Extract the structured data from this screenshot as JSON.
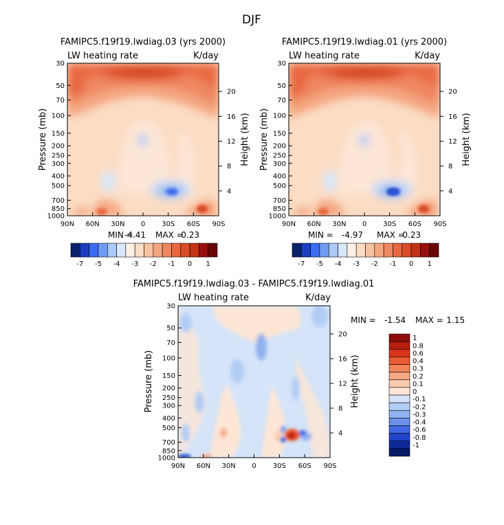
{
  "chart_data": {
    "type": "heatmap",
    "season": "DJF",
    "x_tick_labels": [
      "90N",
      "60N",
      "30N",
      "0",
      "30S",
      "60S",
      "90S"
    ],
    "pressure_ticks": [
      1000,
      850,
      700,
      500,
      400,
      300,
      250,
      200,
      150,
      100,
      70,
      50,
      30
    ],
    "height_ticks": [
      4,
      8,
      12,
      16,
      20
    ],
    "ylabel": "Pressure (mb)",
    "ylabel_right": "Height (km)",
    "variable": "LW heating rate",
    "units": "K/day",
    "panels": [
      {
        "title": "FAMIPC5.f19f19.lwdiag.03 (yrs 2000)",
        "stats": {
          "min_label": "MIN =",
          "min": "-4.41",
          "max_label": "MAX =",
          "max": "0.23"
        }
      },
      {
        "title": "FAMIPC5.f19f19.lwdiag.01 (yrs 2000)",
        "stats": {
          "min_label": "MIN =",
          "min": "-4.97",
          "max_label": "MAX =",
          "max": "0.23"
        }
      },
      {
        "title": "FAMIPC5.f19f19.lwdiag.03 - FAMIPC5.f19f19.lwdiag.01",
        "stats": {
          "min_label": "MIN =",
          "min": "-1.54",
          "max_label": "MAX =",
          "max": "1.15"
        }
      }
    ],
    "colorbar_top": {
      "labels": [
        "-7",
        "-5",
        "-4",
        "-3",
        "-2",
        "-1",
        "0",
        "1"
      ],
      "colors": [
        "#08216b",
        "#1a3fc2",
        "#3a6cf0",
        "#6f9cf3",
        "#a9c8f6",
        "#d8e8fb",
        "#fdf0e4",
        "#fbdcc4",
        "#f8c2a2",
        "#f4a580",
        "#ef8760",
        "#e8673f",
        "#d94c26",
        "#c23414",
        "#990f0f",
        "#6b0606"
      ]
    },
    "colorbar_diff": {
      "labels": [
        "1",
        "0.8",
        "0.6",
        "0.4",
        "0.3",
        "0.2",
        "0.1",
        "0",
        "-0.1",
        "-0.2",
        "-0.3",
        "-0.4",
        "-0.6",
        "-0.8",
        "-1"
      ],
      "colors": [
        "#8e0c0c",
        "#b81d10",
        "#d9321a",
        "#ec5a34",
        "#f58458",
        "#f7a883",
        "#f9c9ae",
        "#fde6d6",
        "#d5e4f8",
        "#b2cdf4",
        "#8fb1ef",
        "#6a90ea",
        "#3f68e3",
        "#1f45c9",
        "#0d2a9d",
        "#061a66"
      ]
    }
  }
}
